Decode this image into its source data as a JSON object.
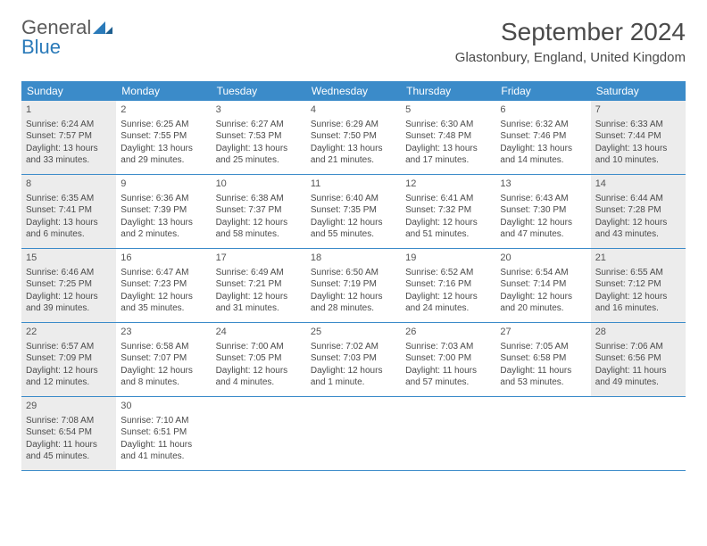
{
  "logo": {
    "text1": "General",
    "text2": "Blue"
  },
  "header": {
    "title": "September 2024",
    "location": "Glastonbury, England, United Kingdom"
  },
  "colors": {
    "header_bg": "#3b8bc9",
    "row_divider": "#3b8bc9",
    "shaded_cell": "#ececec",
    "text": "#4a4a4a"
  },
  "day_headers": [
    "Sunday",
    "Monday",
    "Tuesday",
    "Wednesday",
    "Thursday",
    "Friday",
    "Saturday"
  ],
  "weeks": [
    [
      {
        "n": "1",
        "shaded": true,
        "sunrise": "Sunrise: 6:24 AM",
        "sunset": "Sunset: 7:57 PM",
        "d1": "Daylight: 13 hours",
        "d2": "and 33 minutes."
      },
      {
        "n": "2",
        "shaded": false,
        "sunrise": "Sunrise: 6:25 AM",
        "sunset": "Sunset: 7:55 PM",
        "d1": "Daylight: 13 hours",
        "d2": "and 29 minutes."
      },
      {
        "n": "3",
        "shaded": false,
        "sunrise": "Sunrise: 6:27 AM",
        "sunset": "Sunset: 7:53 PM",
        "d1": "Daylight: 13 hours",
        "d2": "and 25 minutes."
      },
      {
        "n": "4",
        "shaded": false,
        "sunrise": "Sunrise: 6:29 AM",
        "sunset": "Sunset: 7:50 PM",
        "d1": "Daylight: 13 hours",
        "d2": "and 21 minutes."
      },
      {
        "n": "5",
        "shaded": false,
        "sunrise": "Sunrise: 6:30 AM",
        "sunset": "Sunset: 7:48 PM",
        "d1": "Daylight: 13 hours",
        "d2": "and 17 minutes."
      },
      {
        "n": "6",
        "shaded": false,
        "sunrise": "Sunrise: 6:32 AM",
        "sunset": "Sunset: 7:46 PM",
        "d1": "Daylight: 13 hours",
        "d2": "and 14 minutes."
      },
      {
        "n": "7",
        "shaded": true,
        "sunrise": "Sunrise: 6:33 AM",
        "sunset": "Sunset: 7:44 PM",
        "d1": "Daylight: 13 hours",
        "d2": "and 10 minutes."
      }
    ],
    [
      {
        "n": "8",
        "shaded": true,
        "sunrise": "Sunrise: 6:35 AM",
        "sunset": "Sunset: 7:41 PM",
        "d1": "Daylight: 13 hours",
        "d2": "and 6 minutes."
      },
      {
        "n": "9",
        "shaded": false,
        "sunrise": "Sunrise: 6:36 AM",
        "sunset": "Sunset: 7:39 PM",
        "d1": "Daylight: 13 hours",
        "d2": "and 2 minutes."
      },
      {
        "n": "10",
        "shaded": false,
        "sunrise": "Sunrise: 6:38 AM",
        "sunset": "Sunset: 7:37 PM",
        "d1": "Daylight: 12 hours",
        "d2": "and 58 minutes."
      },
      {
        "n": "11",
        "shaded": false,
        "sunrise": "Sunrise: 6:40 AM",
        "sunset": "Sunset: 7:35 PM",
        "d1": "Daylight: 12 hours",
        "d2": "and 55 minutes."
      },
      {
        "n": "12",
        "shaded": false,
        "sunrise": "Sunrise: 6:41 AM",
        "sunset": "Sunset: 7:32 PM",
        "d1": "Daylight: 12 hours",
        "d2": "and 51 minutes."
      },
      {
        "n": "13",
        "shaded": false,
        "sunrise": "Sunrise: 6:43 AM",
        "sunset": "Sunset: 7:30 PM",
        "d1": "Daylight: 12 hours",
        "d2": "and 47 minutes."
      },
      {
        "n": "14",
        "shaded": true,
        "sunrise": "Sunrise: 6:44 AM",
        "sunset": "Sunset: 7:28 PM",
        "d1": "Daylight: 12 hours",
        "d2": "and 43 minutes."
      }
    ],
    [
      {
        "n": "15",
        "shaded": true,
        "sunrise": "Sunrise: 6:46 AM",
        "sunset": "Sunset: 7:25 PM",
        "d1": "Daylight: 12 hours",
        "d2": "and 39 minutes."
      },
      {
        "n": "16",
        "shaded": false,
        "sunrise": "Sunrise: 6:47 AM",
        "sunset": "Sunset: 7:23 PM",
        "d1": "Daylight: 12 hours",
        "d2": "and 35 minutes."
      },
      {
        "n": "17",
        "shaded": false,
        "sunrise": "Sunrise: 6:49 AM",
        "sunset": "Sunset: 7:21 PM",
        "d1": "Daylight: 12 hours",
        "d2": "and 31 minutes."
      },
      {
        "n": "18",
        "shaded": false,
        "sunrise": "Sunrise: 6:50 AM",
        "sunset": "Sunset: 7:19 PM",
        "d1": "Daylight: 12 hours",
        "d2": "and 28 minutes."
      },
      {
        "n": "19",
        "shaded": false,
        "sunrise": "Sunrise: 6:52 AM",
        "sunset": "Sunset: 7:16 PM",
        "d1": "Daylight: 12 hours",
        "d2": "and 24 minutes."
      },
      {
        "n": "20",
        "shaded": false,
        "sunrise": "Sunrise: 6:54 AM",
        "sunset": "Sunset: 7:14 PM",
        "d1": "Daylight: 12 hours",
        "d2": "and 20 minutes."
      },
      {
        "n": "21",
        "shaded": true,
        "sunrise": "Sunrise: 6:55 AM",
        "sunset": "Sunset: 7:12 PM",
        "d1": "Daylight: 12 hours",
        "d2": "and 16 minutes."
      }
    ],
    [
      {
        "n": "22",
        "shaded": true,
        "sunrise": "Sunrise: 6:57 AM",
        "sunset": "Sunset: 7:09 PM",
        "d1": "Daylight: 12 hours",
        "d2": "and 12 minutes."
      },
      {
        "n": "23",
        "shaded": false,
        "sunrise": "Sunrise: 6:58 AM",
        "sunset": "Sunset: 7:07 PM",
        "d1": "Daylight: 12 hours",
        "d2": "and 8 minutes."
      },
      {
        "n": "24",
        "shaded": false,
        "sunrise": "Sunrise: 7:00 AM",
        "sunset": "Sunset: 7:05 PM",
        "d1": "Daylight: 12 hours",
        "d2": "and 4 minutes."
      },
      {
        "n": "25",
        "shaded": false,
        "sunrise": "Sunrise: 7:02 AM",
        "sunset": "Sunset: 7:03 PM",
        "d1": "Daylight: 12 hours",
        "d2": "and 1 minute."
      },
      {
        "n": "26",
        "shaded": false,
        "sunrise": "Sunrise: 7:03 AM",
        "sunset": "Sunset: 7:00 PM",
        "d1": "Daylight: 11 hours",
        "d2": "and 57 minutes."
      },
      {
        "n": "27",
        "shaded": false,
        "sunrise": "Sunrise: 7:05 AM",
        "sunset": "Sunset: 6:58 PM",
        "d1": "Daylight: 11 hours",
        "d2": "and 53 minutes."
      },
      {
        "n": "28",
        "shaded": true,
        "sunrise": "Sunrise: 7:06 AM",
        "sunset": "Sunset: 6:56 PM",
        "d1": "Daylight: 11 hours",
        "d2": "and 49 minutes."
      }
    ],
    [
      {
        "n": "29",
        "shaded": true,
        "sunrise": "Sunrise: 7:08 AM",
        "sunset": "Sunset: 6:54 PM",
        "d1": "Daylight: 11 hours",
        "d2": "and 45 minutes."
      },
      {
        "n": "30",
        "shaded": false,
        "sunrise": "Sunrise: 7:10 AM",
        "sunset": "Sunset: 6:51 PM",
        "d1": "Daylight: 11 hours",
        "d2": "and 41 minutes."
      },
      {
        "empty": true
      },
      {
        "empty": true
      },
      {
        "empty": true
      },
      {
        "empty": true
      },
      {
        "empty": true
      }
    ]
  ]
}
